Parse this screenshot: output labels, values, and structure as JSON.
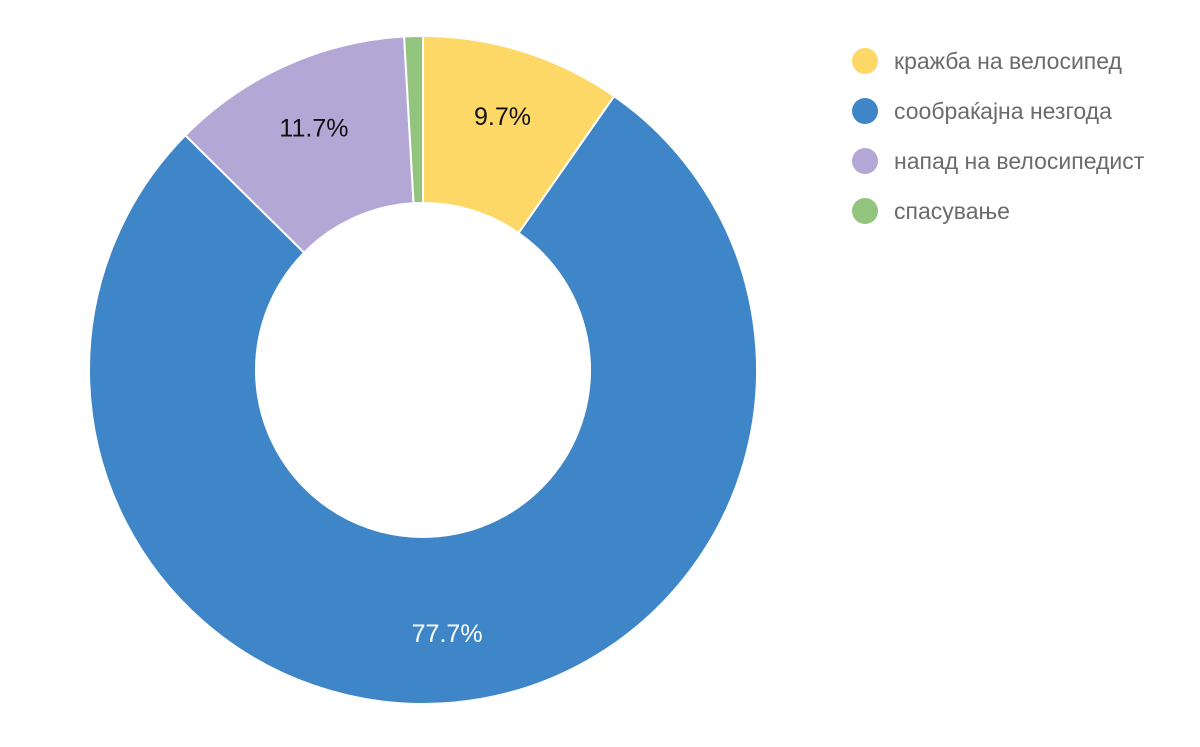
{
  "chart_data": {
    "type": "pie",
    "variant": "donut",
    "categories": [
      "кражба на велосипед",
      "сообраќајна незгода",
      "напад на велосипедист",
      "спасување"
    ],
    "values": [
      9.7,
      77.7,
      11.7,
      0.9
    ],
    "labels": [
      "9.7%",
      "77.7%",
      "11.7%",
      ""
    ],
    "colors": [
      "#FDD867",
      "#3F86C8",
      "#B3A7D6",
      "#93C47D"
    ],
    "label_colors": [
      "#111111",
      "#ffffff",
      "#111111",
      "#111111"
    ],
    "legend_position": "top-right",
    "start": "12 o'clock",
    "direction": "clockwise"
  }
}
